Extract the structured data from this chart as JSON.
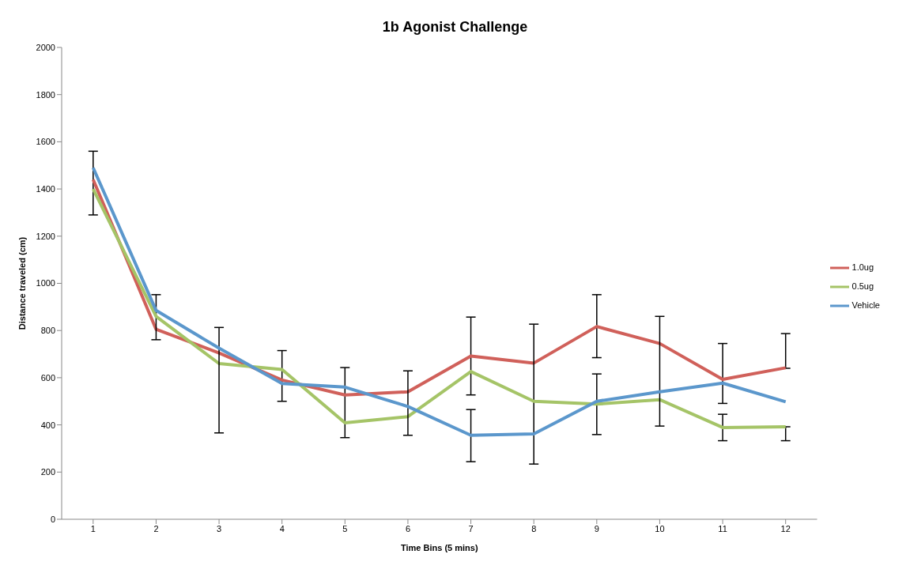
{
  "chart_data": {
    "type": "line",
    "title": "1b Agonist Challenge",
    "xlabel": "Time Bins (5 mins)",
    "ylabel": "Distance traveled (cm)",
    "categories": [
      "1",
      "2",
      "3",
      "4",
      "5",
      "6",
      "7",
      "8",
      "9",
      "10",
      "11",
      "12"
    ],
    "series": [
      {
        "name": "1.0ug",
        "color": "#d0605a",
        "values": [
          1440,
          805,
          705,
          590,
          527,
          540,
          692,
          662,
          817,
          745,
          593,
          642
        ],
        "errors": [
          [
            1290,
            1560
          ],
          null,
          null,
          [
            500,
            715
          ],
          [
            346,
            643
          ],
          null,
          [
            527,
            857
          ],
          null,
          [
            685,
            952
          ],
          null,
          [
            491,
            745
          ],
          [
            640,
            787
          ]
        ]
      },
      {
        "name": "0.5ug",
        "color": "#a5c467",
        "values": [
          1400,
          860,
          660,
          635,
          409,
          435,
          626,
          500,
          488,
          507,
          389,
          392
        ],
        "errors": [
          null,
          [
            761,
            952
          ],
          null,
          null,
          null,
          null,
          null,
          [
            234,
            827
          ],
          [
            359,
            616
          ],
          null,
          [
            333,
            445
          ],
          [
            333,
            392
          ]
        ]
      },
      {
        "name": "Vehicle",
        "color": "#5b97cc",
        "values": [
          1490,
          885,
          725,
          575,
          560,
          478,
          356,
          362,
          500,
          540,
          577,
          498
        ],
        "errors": [
          null,
          null,
          [
            366,
            813
          ],
          null,
          null,
          [
            356,
            629
          ],
          [
            244,
            465
          ],
          null,
          null,
          [
            395,
            860
          ],
          null,
          null
        ]
      }
    ],
    "ylim": [
      0,
      2000
    ],
    "yticks": [
      0,
      200,
      400,
      600,
      800,
      1000,
      1200,
      1400,
      1600,
      1800,
      2000
    ],
    "grid": false,
    "legend": "right",
    "marker": "none",
    "line_style": "solid"
  }
}
